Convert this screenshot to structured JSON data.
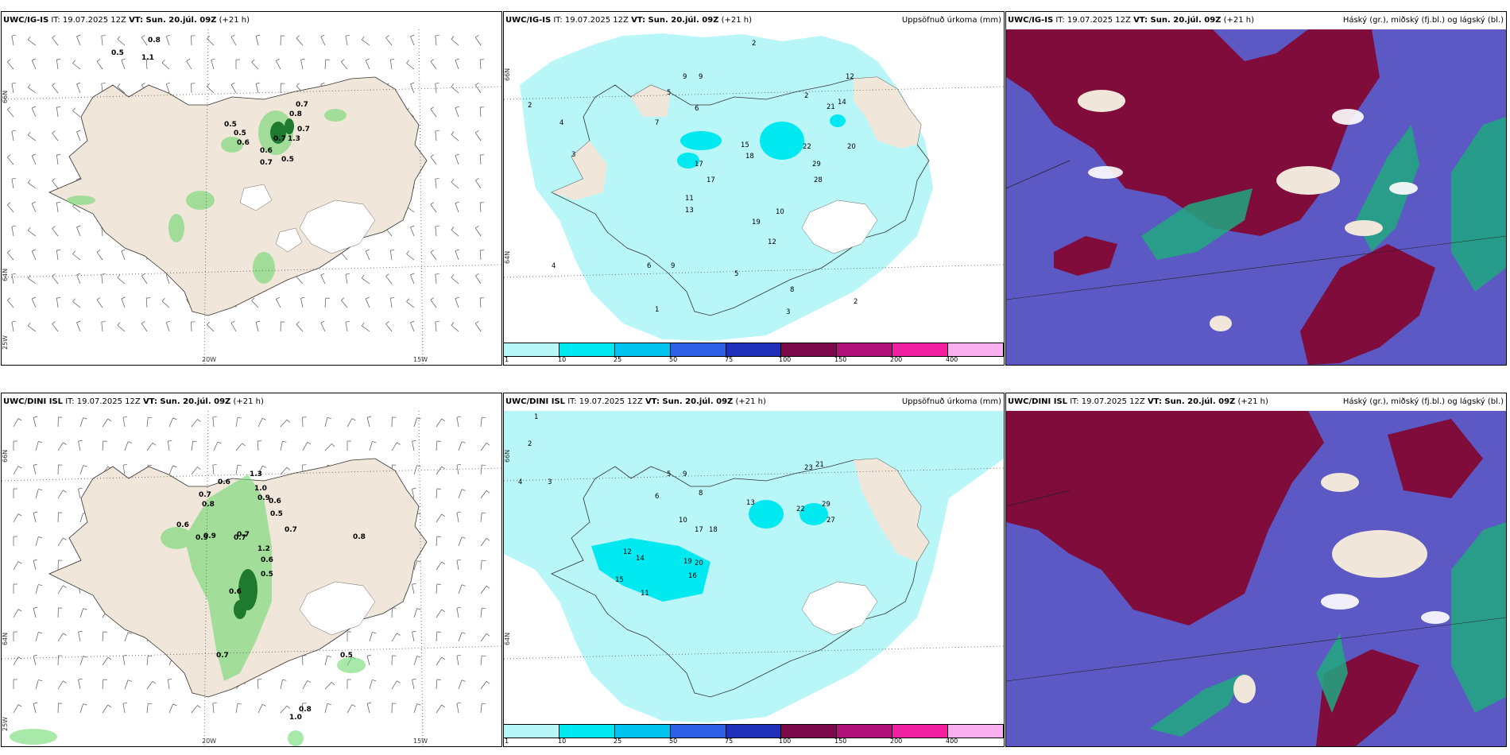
{
  "panels": {
    "top_wind": {
      "model": "UWC/IG-IS",
      "it": "IT: 19.07.2025 12Z",
      "vt": "VT: Sun. 20.júl. 09Z",
      "lead": "(+21 h)",
      "field": "",
      "lon_labels": [
        "20W",
        "15W"
      ],
      "lat_labels": [
        "66N",
        "64N",
        "25W"
      ],
      "values": [
        "0.8",
        "0.5",
        "1.1",
        "0.7",
        "0.8",
        "0.7",
        "0.5",
        "0.5",
        "0.6",
        "0.6",
        "0.7",
        "0.5",
        "1.3",
        "0.7"
      ]
    },
    "top_precip": {
      "model": "UWC/IG-IS",
      "it": "IT: 19.07.2025 12Z",
      "vt": "VT: Sun. 20.júl. 09Z",
      "lead": "(+21 h)",
      "field": "Uppsöfnuð úrkoma (mm)",
      "lat_labels": [
        "66N",
        "64N"
      ],
      "values": [
        "2",
        "2",
        "4",
        "3",
        "5",
        "7",
        "9",
        "9",
        "6",
        "2",
        "12",
        "14",
        "21",
        "22",
        "20",
        "29",
        "28",
        "17",
        "17",
        "15",
        "18",
        "13",
        "11",
        "19",
        "10",
        "12",
        "9",
        "8",
        "5",
        "3",
        "4",
        "6",
        "2",
        "1"
      ]
    },
    "top_cloud": {
      "model": "UWC/IG-IS",
      "it": "IT: 19.07.2025 12Z",
      "vt": "VT: Sun. 20.júl. 09Z",
      "lead": "(+21 h)",
      "field": "Háský (gr.), miðský (fj.bl.) og lágský (bl.)"
    },
    "bottom_wind": {
      "model": "UWC/DINI ISL",
      "it": "IT: 19.07.2025 12Z",
      "vt": "VT: Sun. 20.júl. 09Z",
      "lead": "(+21 h)",
      "field": "",
      "lon_labels": [
        "20W",
        "15W"
      ],
      "lat_labels": [
        "66N",
        "64N",
        "25W"
      ],
      "values": [
        "1.3",
        "0.6",
        "1.0",
        "0.9",
        "0.7",
        "0.8",
        "0.6",
        "0.5",
        "0.7",
        "0.6",
        "0.8",
        "0.9",
        "0.7",
        "1.2",
        "0.6",
        "0.6",
        "0.5",
        "0.7",
        "0.9",
        "1.0",
        "0.8",
        "0.5",
        "0.7"
      ]
    },
    "bottom_precip": {
      "model": "UWC/DINI ISL",
      "it": "IT: 19.07.2025 12Z",
      "vt": "VT: Sun. 20.júl. 09Z",
      "lead": "(+21 h)",
      "field": "Uppsöfnuð úrkoma (mm)",
      "lat_labels": [
        "66N",
        "64N"
      ],
      "values": [
        "1",
        "2",
        "3",
        "4",
        "5",
        "6",
        "8",
        "9",
        "10",
        "11",
        "12",
        "14",
        "15",
        "16",
        "17",
        "18",
        "19",
        "20",
        "21",
        "22",
        "23",
        "27",
        "29",
        "13"
      ]
    },
    "bottom_cloud": {
      "model": "UWC/DINI ISL",
      "it": "IT: 19.07.2025 12Z",
      "vt": "VT: Sun. 20.júl. 09Z",
      "lead": "(+21 h)",
      "field": "Háský (gr.), miðský (fj.bl.) og lágský (bl.)"
    }
  },
  "legend": {
    "ticks": [
      "1",
      "10",
      "25",
      "50",
      "75",
      "100",
      "150",
      "200",
      "400"
    ],
    "colors": [
      "#b8f6f8",
      "#00e8f0",
      "#00c4f0",
      "#3060e8",
      "#2030b8",
      "#7a0a4a",
      "#b0107a",
      "#f020a0",
      "#f8b0f0"
    ]
  },
  "colors": {
    "land": "#f0e6da",
    "sea": "#ffffff",
    "precip_light": "#b8f6f8",
    "precip_mid": "#00e8f0",
    "cloud_high": "#800c3c",
    "cloud_low": "#5c58c4",
    "cloud_mid": "#20a880",
    "green_precip": "#6ed86e"
  }
}
